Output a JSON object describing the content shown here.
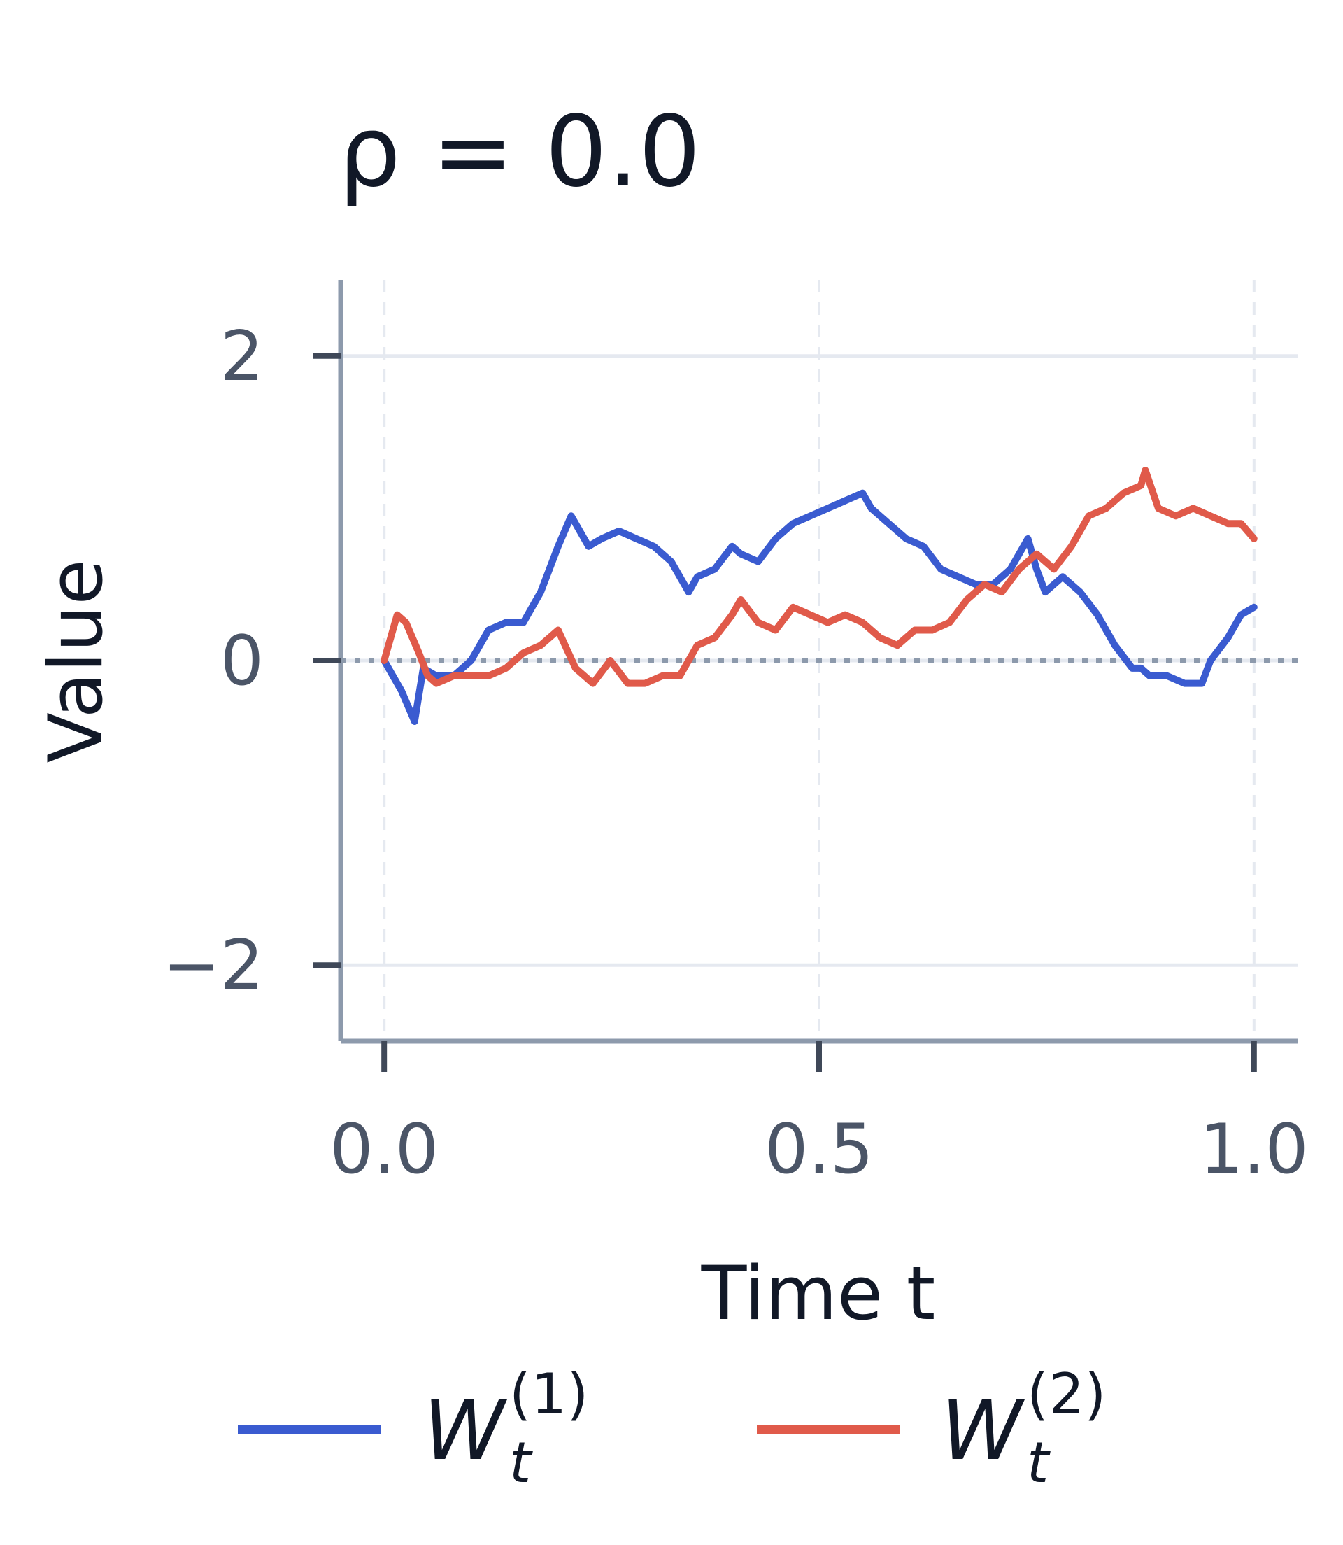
{
  "chart_data": {
    "type": "line",
    "title": "ρ = 0.0",
    "xlabel": "Time t",
    "ylabel": "Value",
    "xlim": [
      -0.05,
      1.05
    ],
    "ylim": [
      -2.5,
      2.5
    ],
    "x_ticks": [
      "0.0",
      "0.5",
      "1.0"
    ],
    "y_ticks": [
      "2",
      "0",
      "−2"
    ],
    "grid": true,
    "legend_position": "bottom",
    "reference_line_y": 0,
    "series": [
      {
        "name": "W_t^(1)",
        "color": "#3a5bd0",
        "x": [
          0.0,
          0.02,
          0.035,
          0.045,
          0.06,
          0.08,
          0.1,
          0.12,
          0.14,
          0.16,
          0.18,
          0.2,
          0.215,
          0.225,
          0.235,
          0.25,
          0.27,
          0.29,
          0.31,
          0.33,
          0.35,
          0.36,
          0.38,
          0.4,
          0.41,
          0.43,
          0.45,
          0.47,
          0.49,
          0.51,
          0.53,
          0.55,
          0.56,
          0.58,
          0.6,
          0.62,
          0.64,
          0.66,
          0.68,
          0.7,
          0.72,
          0.74,
          0.75,
          0.76,
          0.78,
          0.8,
          0.82,
          0.84,
          0.86,
          0.87,
          0.88,
          0.9,
          0.92,
          0.94,
          0.95,
          0.97,
          0.985,
          1.0
        ],
        "y": [
          0.0,
          -0.2,
          -0.4,
          -0.05,
          -0.1,
          -0.1,
          0.0,
          0.2,
          0.25,
          0.25,
          0.45,
          0.75,
          0.95,
          0.85,
          0.75,
          0.8,
          0.85,
          0.8,
          0.75,
          0.65,
          0.45,
          0.55,
          0.6,
          0.75,
          0.7,
          0.65,
          0.8,
          0.9,
          0.95,
          1.0,
          1.05,
          1.1,
          1.0,
          0.9,
          0.8,
          0.75,
          0.6,
          0.55,
          0.5,
          0.5,
          0.6,
          0.8,
          0.6,
          0.45,
          0.55,
          0.45,
          0.3,
          0.1,
          -0.05,
          -0.05,
          -0.1,
          -0.1,
          -0.15,
          -0.15,
          0.0,
          0.15,
          0.3,
          0.35
        ]
      },
      {
        "name": "W_t^(2)",
        "color": "#e05a4a",
        "x": [
          0.0,
          0.015,
          0.025,
          0.04,
          0.05,
          0.06,
          0.08,
          0.1,
          0.12,
          0.14,
          0.16,
          0.18,
          0.2,
          0.22,
          0.24,
          0.26,
          0.28,
          0.3,
          0.32,
          0.34,
          0.36,
          0.38,
          0.4,
          0.41,
          0.43,
          0.45,
          0.47,
          0.49,
          0.51,
          0.53,
          0.55,
          0.57,
          0.59,
          0.61,
          0.63,
          0.65,
          0.67,
          0.69,
          0.71,
          0.73,
          0.75,
          0.77,
          0.79,
          0.81,
          0.83,
          0.85,
          0.87,
          0.875,
          0.89,
          0.91,
          0.93,
          0.95,
          0.97,
          0.985,
          1.0
        ],
        "y": [
          0.0,
          0.3,
          0.25,
          0.05,
          -0.1,
          -0.15,
          -0.1,
          -0.1,
          -0.1,
          -0.05,
          0.05,
          0.1,
          0.2,
          -0.05,
          -0.15,
          0.0,
          -0.15,
          -0.15,
          -0.1,
          -0.1,
          0.1,
          0.15,
          0.3,
          0.4,
          0.25,
          0.2,
          0.35,
          0.3,
          0.25,
          0.3,
          0.25,
          0.15,
          0.1,
          0.2,
          0.2,
          0.25,
          0.4,
          0.5,
          0.45,
          0.6,
          0.7,
          0.6,
          0.75,
          0.95,
          1.0,
          1.1,
          1.15,
          1.25,
          1.0,
          0.95,
          1.0,
          0.95,
          0.9,
          0.9,
          0.8
        ]
      }
    ]
  }
}
